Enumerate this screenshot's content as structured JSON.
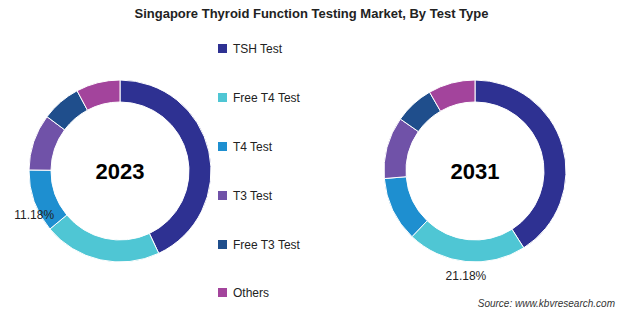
{
  "title": "Singapore Thyroid Function Testing Market, By Test Type",
  "source": "Source: www.kbvresearch.com",
  "chart_data": [
    {
      "type": "pie",
      "title": "2023",
      "categories": [
        "TSH Test",
        "Free T4 Test",
        "T4 Test",
        "T3 Test",
        "Free T3 Test",
        "Others"
      ],
      "values": [
        43,
        21,
        11.18,
        10,
        7,
        7.82
      ],
      "value_labels": [
        null,
        null,
        "11.18%",
        null,
        null,
        null
      ],
      "colors": [
        "#2e3192",
        "#4fc6d4",
        "#1e8fd0",
        "#7052a8",
        "#1f4e8c",
        "#a3449c"
      ]
    },
    {
      "type": "pie",
      "title": "2031",
      "categories": [
        "TSH Test",
        "Free T4 Test",
        "T4 Test",
        "T3 Test",
        "Free T3 Test",
        "Others"
      ],
      "values": [
        41,
        21.18,
        11.5,
        11,
        7,
        8.32
      ],
      "value_labels": [
        null,
        "21.18%",
        null,
        null,
        null,
        null
      ],
      "colors": [
        "#2e3192",
        "#4fc6d4",
        "#1e8fd0",
        "#7052a8",
        "#1f4e8c",
        "#a3449c"
      ]
    }
  ]
}
